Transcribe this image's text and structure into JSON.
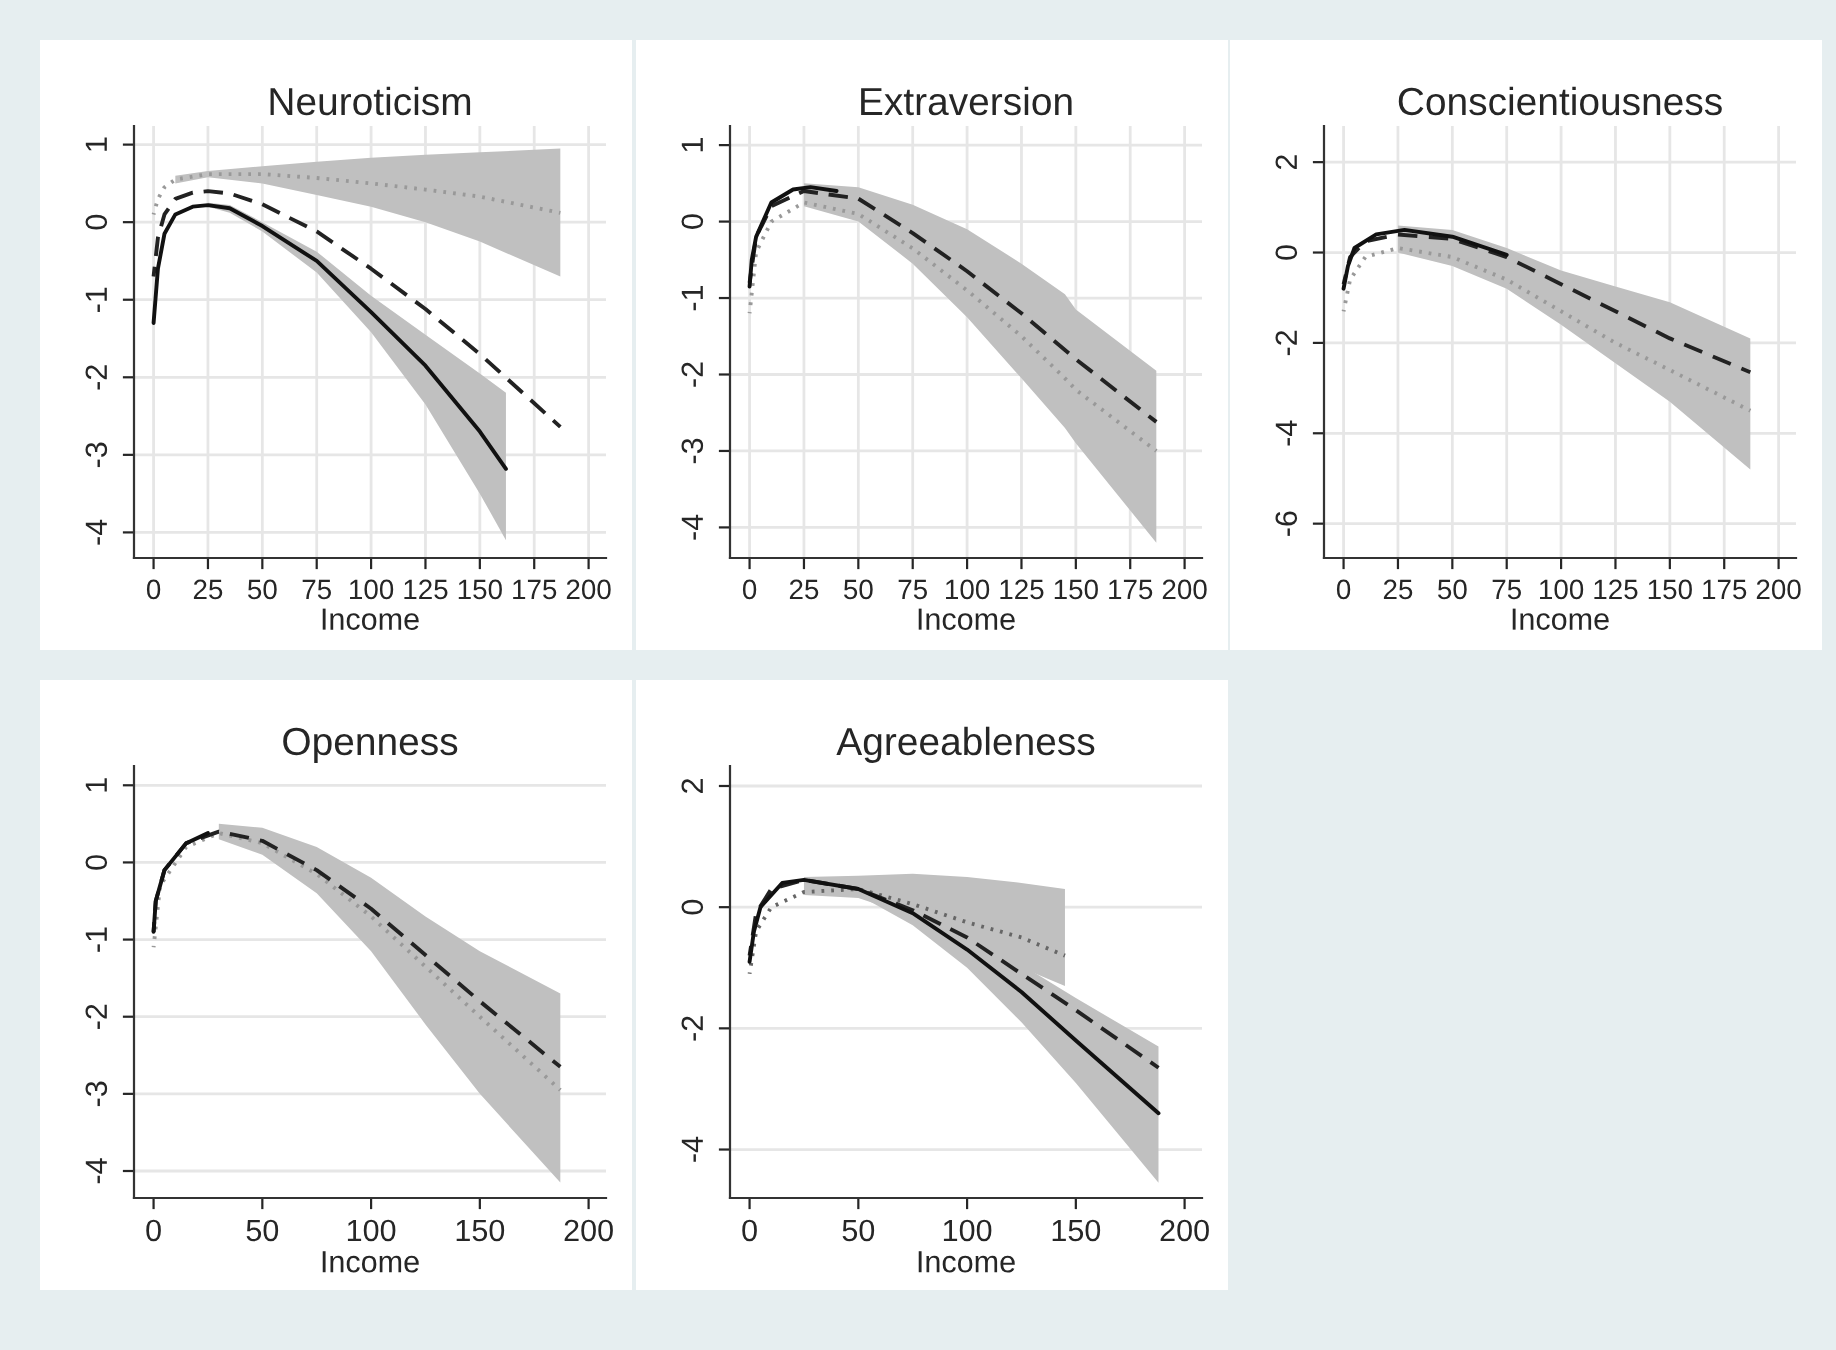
{
  "chart_data": [
    {
      "type": "line",
      "title": "Neuroticism",
      "xlabel": "Income",
      "xlim": [
        -9,
        208
      ],
      "xticks": [
        0,
        25,
        50,
        75,
        100,
        125,
        150,
        175,
        200
      ],
      "ylim": [
        -4.33,
        1.24
      ],
      "yticks": [
        -4,
        -3,
        -2,
        -1,
        0,
        1
      ],
      "grid": true,
      "series": [
        {
          "color": "#999999",
          "line_style": "dotted",
          "x": [
            0,
            2,
            5,
            10,
            25,
            50,
            75,
            100,
            125,
            150,
            187
          ],
          "values": [
            0.1,
            0.3,
            0.45,
            0.55,
            0.62,
            0.62,
            0.57,
            0.5,
            0.42,
            0.33,
            0.12
          ],
          "lower": [
            null,
            null,
            null,
            0.5,
            0.58,
            0.5,
            0.35,
            0.2,
            0.0,
            -0.25,
            -0.7
          ],
          "upper": [
            null,
            null,
            null,
            0.6,
            0.66,
            0.72,
            0.78,
            0.83,
            0.87,
            0.9,
            0.95
          ]
        },
        {
          "color": "#222222",
          "line_style": "dashed",
          "x": [
            0,
            2,
            5,
            10,
            18,
            25,
            35,
            50,
            75,
            100,
            125,
            150,
            187
          ],
          "values": [
            -0.7,
            -0.2,
            0.1,
            0.3,
            0.38,
            0.4,
            0.37,
            0.23,
            -0.12,
            -0.6,
            -1.12,
            -1.7,
            -2.64
          ]
        },
        {
          "color": "#111111",
          "line_style": "solid",
          "x": [
            0,
            2,
            5,
            10,
            18,
            25,
            35,
            50,
            75,
            100,
            125,
            150,
            162
          ],
          "values": [
            -1.3,
            -0.6,
            -0.15,
            0.1,
            0.2,
            0.22,
            0.18,
            -0.05,
            -0.5,
            -1.16,
            -1.85,
            -2.7,
            -3.18
          ],
          "lower": [
            null,
            null,
            null,
            null,
            null,
            0.2,
            0.12,
            -0.12,
            -0.65,
            -1.42,
            -2.35,
            -3.5,
            -4.1
          ],
          "upper": [
            null,
            null,
            null,
            null,
            null,
            0.25,
            0.22,
            0.0,
            -0.38,
            -0.95,
            -1.45,
            -1.95,
            -2.2
          ]
        }
      ]
    },
    {
      "type": "line",
      "title": "Extraversion",
      "xlabel": "Income",
      "xlim": [
        -9,
        208
      ],
      "xticks": [
        0,
        25,
        50,
        75,
        100,
        125,
        150,
        175,
        200
      ],
      "ylim": [
        -4.4,
        1.25
      ],
      "yticks": [
        -4,
        -3,
        -2,
        -1,
        0,
        1
      ],
      "grid": true,
      "series": [
        {
          "color": "#999999",
          "line_style": "dotted",
          "x": [
            0,
            3,
            10,
            25,
            50,
            75,
            100,
            125,
            145,
            150,
            187
          ],
          "values": [
            -1.2,
            -0.4,
            0.0,
            0.25,
            0.1,
            -0.35,
            -0.9,
            -1.5,
            -2.05,
            -2.2,
            -3.0
          ],
          "lower": [
            null,
            null,
            null,
            0.2,
            0.0,
            -0.55,
            -1.25,
            -2.05,
            -2.7,
            -2.9,
            -4.2
          ],
          "upper": [
            null,
            null,
            null,
            0.5,
            0.45,
            0.22,
            -0.1,
            -0.55,
            -0.95,
            -1.15,
            -1.95
          ]
        },
        {
          "color": "#222222",
          "line_style": "dashed",
          "x": [
            0,
            3,
            10,
            25,
            50,
            75,
            100,
            125,
            150,
            187
          ],
          "values": [
            -0.8,
            -0.2,
            0.2,
            0.4,
            0.3,
            -0.15,
            -0.65,
            -1.2,
            -1.8,
            -2.62
          ]
        },
        {
          "color": "#111111",
          "line_style": "solid",
          "x": [
            0,
            1,
            3,
            10,
            20,
            28,
            40
          ],
          "values": [
            -0.85,
            -0.5,
            -0.2,
            0.25,
            0.42,
            0.45,
            0.4
          ]
        }
      ]
    },
    {
      "type": "line",
      "title": "Conscientiousness",
      "xlabel": "Income",
      "xlim": [
        -9,
        208
      ],
      "xticks": [
        0,
        25,
        50,
        75,
        100,
        125,
        150,
        175,
        200
      ],
      "ylim": [
        -6.76,
        2.8
      ],
      "yticks": [
        -6,
        -4,
        -2,
        0,
        2
      ],
      "grid": true,
      "series": [
        {
          "color": "#999999",
          "line_style": "dotted",
          "x": [
            0,
            3,
            10,
            25,
            50,
            75,
            100,
            125,
            150,
            187
          ],
          "values": [
            -1.3,
            -0.6,
            -0.1,
            0.1,
            -0.1,
            -0.6,
            -1.3,
            -2.0,
            -2.6,
            -3.5
          ],
          "lower": [
            null,
            null,
            null,
            0.0,
            -0.3,
            -0.8,
            -1.6,
            -2.45,
            -3.3,
            -4.8
          ],
          "upper": [
            null,
            null,
            null,
            0.6,
            0.5,
            0.1,
            -0.4,
            -0.75,
            -1.1,
            -1.9
          ]
        },
        {
          "color": "#222222",
          "line_style": "dashed",
          "x": [
            0,
            3,
            10,
            25,
            50,
            75,
            100,
            125,
            150,
            187
          ],
          "values": [
            -0.7,
            -0.1,
            0.25,
            0.4,
            0.3,
            -0.1,
            -0.7,
            -1.3,
            -1.9,
            -2.65
          ]
        },
        {
          "color": "#111111",
          "line_style": "solid",
          "x": [
            0,
            2,
            5,
            15,
            28,
            50,
            75
          ],
          "values": [
            -0.8,
            -0.3,
            0.1,
            0.4,
            0.5,
            0.35,
            -0.05
          ]
        }
      ]
    },
    {
      "type": "line",
      "title": "Openness",
      "xlabel": "Income",
      "xlim": [
        -9,
        208
      ],
      "xticks": [
        0,
        50,
        100,
        150,
        200
      ],
      "ylim": [
        -4.35,
        1.25
      ],
      "yticks": [
        -4,
        -3,
        -2,
        -1,
        0,
        1
      ],
      "grid": "y",
      "series": [
        {
          "color": "#999999",
          "line_style": "dotted",
          "x": [
            0,
            3,
            15,
            30,
            50,
            75,
            100,
            125,
            150,
            187
          ],
          "values": [
            -1.1,
            -0.3,
            0.2,
            0.38,
            0.25,
            -0.15,
            -0.7,
            -1.35,
            -2.0,
            -2.95
          ],
          "lower": [
            null,
            null,
            null,
            0.3,
            0.1,
            -0.4,
            -1.15,
            -2.1,
            -3.0,
            -4.15
          ],
          "upper": [
            null,
            null,
            null,
            0.5,
            0.45,
            0.2,
            -0.2,
            -0.7,
            -1.15,
            -1.7
          ]
        },
        {
          "color": "#222222",
          "line_style": "dashed",
          "x": [
            0,
            1,
            5,
            15,
            30,
            50,
            75,
            100,
            125,
            150,
            187
          ],
          "values": [
            -0.9,
            -0.5,
            -0.1,
            0.25,
            0.4,
            0.28,
            -0.1,
            -0.6,
            -1.2,
            -1.8,
            -2.65
          ]
        },
        {
          "color": "#111111",
          "line_style": "solid",
          "x": [
            0,
            1,
            5,
            15,
            25
          ],
          "values": [
            -0.9,
            -0.5,
            -0.1,
            0.25,
            0.38
          ]
        }
      ]
    },
    {
      "type": "line",
      "title": "Agreeableness",
      "xlabel": "Income",
      "xlim": [
        -9,
        208
      ],
      "xticks": [
        0,
        50,
        100,
        150,
        200
      ],
      "ylim": [
        -4.8,
        2.33
      ],
      "yticks": [
        -4,
        -2,
        0,
        2
      ],
      "grid": "y",
      "series": [
        {
          "color": "#666666",
          "line_style": "dotted",
          "x": [
            0,
            3,
            10,
            25,
            50,
            75,
            100,
            125,
            145
          ],
          "values": [
            -1.1,
            -0.4,
            0.0,
            0.25,
            0.3,
            0.05,
            -0.25,
            -0.5,
            -0.8
          ],
          "lower": [
            null,
            null,
            null,
            0.2,
            0.15,
            -0.15,
            -0.6,
            -1.0,
            -1.3
          ],
          "upper": [
            null,
            null,
            null,
            0.5,
            0.52,
            0.55,
            0.5,
            0.4,
            0.3
          ]
        },
        {
          "color": "#222222",
          "line_style": "dashed",
          "x": [
            0,
            3,
            10,
            25,
            50,
            75,
            100,
            125,
            150,
            188
          ],
          "values": [
            -0.8,
            -0.1,
            0.3,
            0.45,
            0.3,
            -0.05,
            -0.5,
            -1.1,
            -1.7,
            -2.65
          ]
        },
        {
          "color": "#111111",
          "line_style": "solid",
          "x": [
            0,
            2,
            5,
            15,
            25,
            50,
            75,
            100,
            125,
            150,
            188
          ],
          "values": [
            -0.9,
            -0.4,
            0.0,
            0.4,
            0.45,
            0.3,
            -0.1,
            -0.7,
            -1.4,
            -2.2,
            -3.4
          ],
          "lower": [
            null,
            null,
            null,
            null,
            null,
            0.2,
            -0.3,
            -1.0,
            -1.9,
            -2.9,
            -4.55
          ],
          "upper": [
            null,
            null,
            null,
            null,
            null,
            0.35,
            0.05,
            -0.45,
            -0.95,
            -1.5,
            -2.3
          ]
        }
      ]
    }
  ]
}
